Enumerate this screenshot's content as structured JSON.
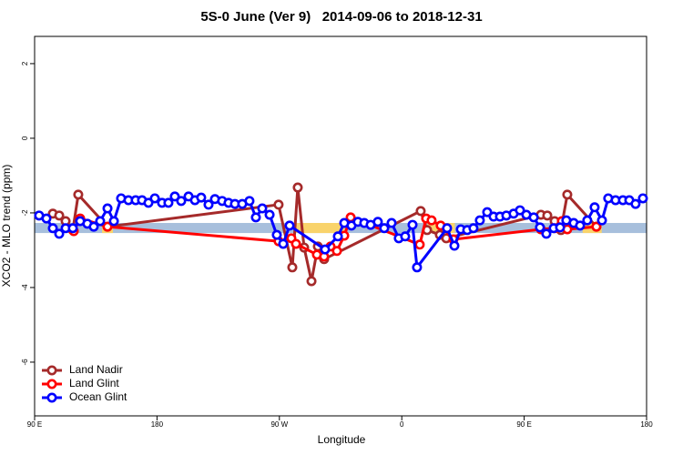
{
  "chart_data": {
    "type": "line",
    "title": "5S-0 June (Ver 9)   2014-09-06 to 2018-12-31",
    "x_label": "Longitude",
    "y_label": "XCO2 - MLO trend (ppm)",
    "xlim": [
      90,
      540
    ],
    "ylim": [
      -7.44,
      2.73
    ],
    "xticks": [
      {
        "value": 90,
        "label": "90 E"
      },
      {
        "value": 180,
        "label": "180"
      },
      {
        "value": 270,
        "label": "90 W"
      },
      {
        "value": 360,
        "label": "0"
      },
      {
        "value": 450,
        "label": "90 E"
      },
      {
        "value": 540,
        "label": "180"
      }
    ],
    "yticks": [
      2,
      0,
      -2,
      -4,
      -6
    ],
    "legend": "bottom-left",
    "bands": [
      {
        "ymin": -2.54,
        "ymax": -2.27,
        "color": "#a7bfdc"
      },
      {
        "xmin": 139.6,
        "xmax": 147.6,
        "ymin": -2.54,
        "ymax": -2.27,
        "color": "#f9d36b"
      },
      {
        "xmin": 282,
        "xmax": 318,
        "ymin": -2.54,
        "ymax": -2.27,
        "color": "#f9d36b"
      },
      {
        "xmin": 379,
        "xmax": 399,
        "ymin": -2.54,
        "ymax": -2.27,
        "color": "#f9d36b"
      },
      {
        "xmin": 493,
        "xmax": 507,
        "ymin": -2.54,
        "ymax": -2.27,
        "color": "#f9d36b"
      }
    ],
    "series": [
      {
        "name": "Land Nadir",
        "color": "#a52a2a",
        "x": [
          103.4,
          108.1,
          112.8,
          118.1,
          122.1,
          143.6,
          269.4,
          279.5,
          283.5,
          288.2,
          293.6,
          298.3,
          302.9,
          373.9,
          378.6,
          388.0,
          392.7,
          462.3,
          467.0,
          472.4,
          477.0,
          481.7,
          503.1
        ],
        "values": [
          -2.02,
          -2.07,
          -2.22,
          -2.46,
          -1.51,
          -2.37,
          -1.78,
          -3.46,
          -1.32,
          -2.93,
          -3.83,
          -2.9,
          -3.24,
          -1.95,
          -2.46,
          -2.59,
          -2.68,
          -2.05,
          -2.07,
          -2.22,
          -2.46,
          -1.51,
          -2.37
        ]
      },
      {
        "name": "Land Glint",
        "color": "#ff0000",
        "x": [
          118.8,
          123.5,
          143.6,
          269.4,
          278.8,
          282.2,
          297.6,
          302.9,
          307.6,
          312.3,
          317.7,
          322.4,
          373.2,
          377.9,
          381.9,
          388.6,
          398.0,
          462.3,
          472.4,
          477.7,
          481.7,
          503.1
        ],
        "values": [
          -2.49,
          -2.15,
          -2.37,
          -2.76,
          -2.68,
          -2.83,
          -3.12,
          -3.17,
          -2.9,
          -3.02,
          -2.61,
          -2.12,
          -2.85,
          -2.15,
          -2.2,
          -2.34,
          -2.71,
          -2.44,
          -2.41,
          -2.22,
          -2.44,
          -2.37
        ]
      },
      {
        "name": "Ocean Glint",
        "color": "#0000ff",
        "x": [
          93.3,
          98.7,
          103.4,
          108.1,
          112.8,
          118.1,
          123.5,
          128.8,
          133.5,
          138.2,
          143.6,
          148.3,
          153.6,
          159.0,
          164.3,
          169.0,
          173.7,
          178.4,
          183.7,
          188.4,
          193.1,
          197.8,
          203.2,
          207.9,
          212.5,
          217.9,
          222.6,
          227.9,
          232.6,
          237.3,
          242.7,
          248.0,
          252.7,
          257.4,
          262.8,
          268.1,
          272.8,
          277.5,
          303.6,
          313.0,
          317.7,
          323.0,
          327.7,
          332.4,
          337.1,
          342.4,
          347.1,
          352.5,
          357.8,
          362.5,
          367.9,
          371.2,
          393.3,
          398.7,
          403.4,
          408.1,
          412.7,
          417.4,
          422.8,
          427.5,
          432.2,
          436.9,
          442.2,
          446.9,
          451.6,
          457.0,
          461.6,
          466.3,
          471.7,
          476.4,
          481.0,
          486.4,
          491.1,
          496.4,
          501.8,
          507.2,
          511.8,
          517.2,
          522.6,
          527.3,
          531.9,
          537.3
        ],
        "values": [
          -2.07,
          -2.15,
          -2.41,
          -2.56,
          -2.41,
          -2.41,
          -2.22,
          -2.29,
          -2.37,
          -2.22,
          -1.88,
          -2.22,
          -1.61,
          -1.66,
          -1.66,
          -1.66,
          -1.73,
          -1.61,
          -1.73,
          -1.73,
          -1.56,
          -1.68,
          -1.56,
          -1.66,
          -1.59,
          -1.78,
          -1.63,
          -1.68,
          -1.73,
          -1.76,
          -1.76,
          -1.68,
          -2.12,
          -1.88,
          -2.05,
          -2.59,
          -2.83,
          -2.34,
          -2.98,
          -2.63,
          -2.27,
          -2.34,
          -2.24,
          -2.27,
          -2.32,
          -2.24,
          -2.41,
          -2.27,
          -2.68,
          -2.63,
          -2.32,
          -3.46,
          -2.41,
          -2.88,
          -2.44,
          -2.46,
          -2.41,
          -2.2,
          -1.98,
          -2.1,
          -2.1,
          -2.07,
          -2.02,
          -1.93,
          -2.05,
          -2.12,
          -2.39,
          -2.56,
          -2.41,
          -2.39,
          -2.2,
          -2.27,
          -2.34,
          -2.2,
          -1.85,
          -2.2,
          -1.61,
          -1.66,
          -1.66,
          -1.66,
          -1.76,
          -1.61
        ]
      }
    ]
  }
}
